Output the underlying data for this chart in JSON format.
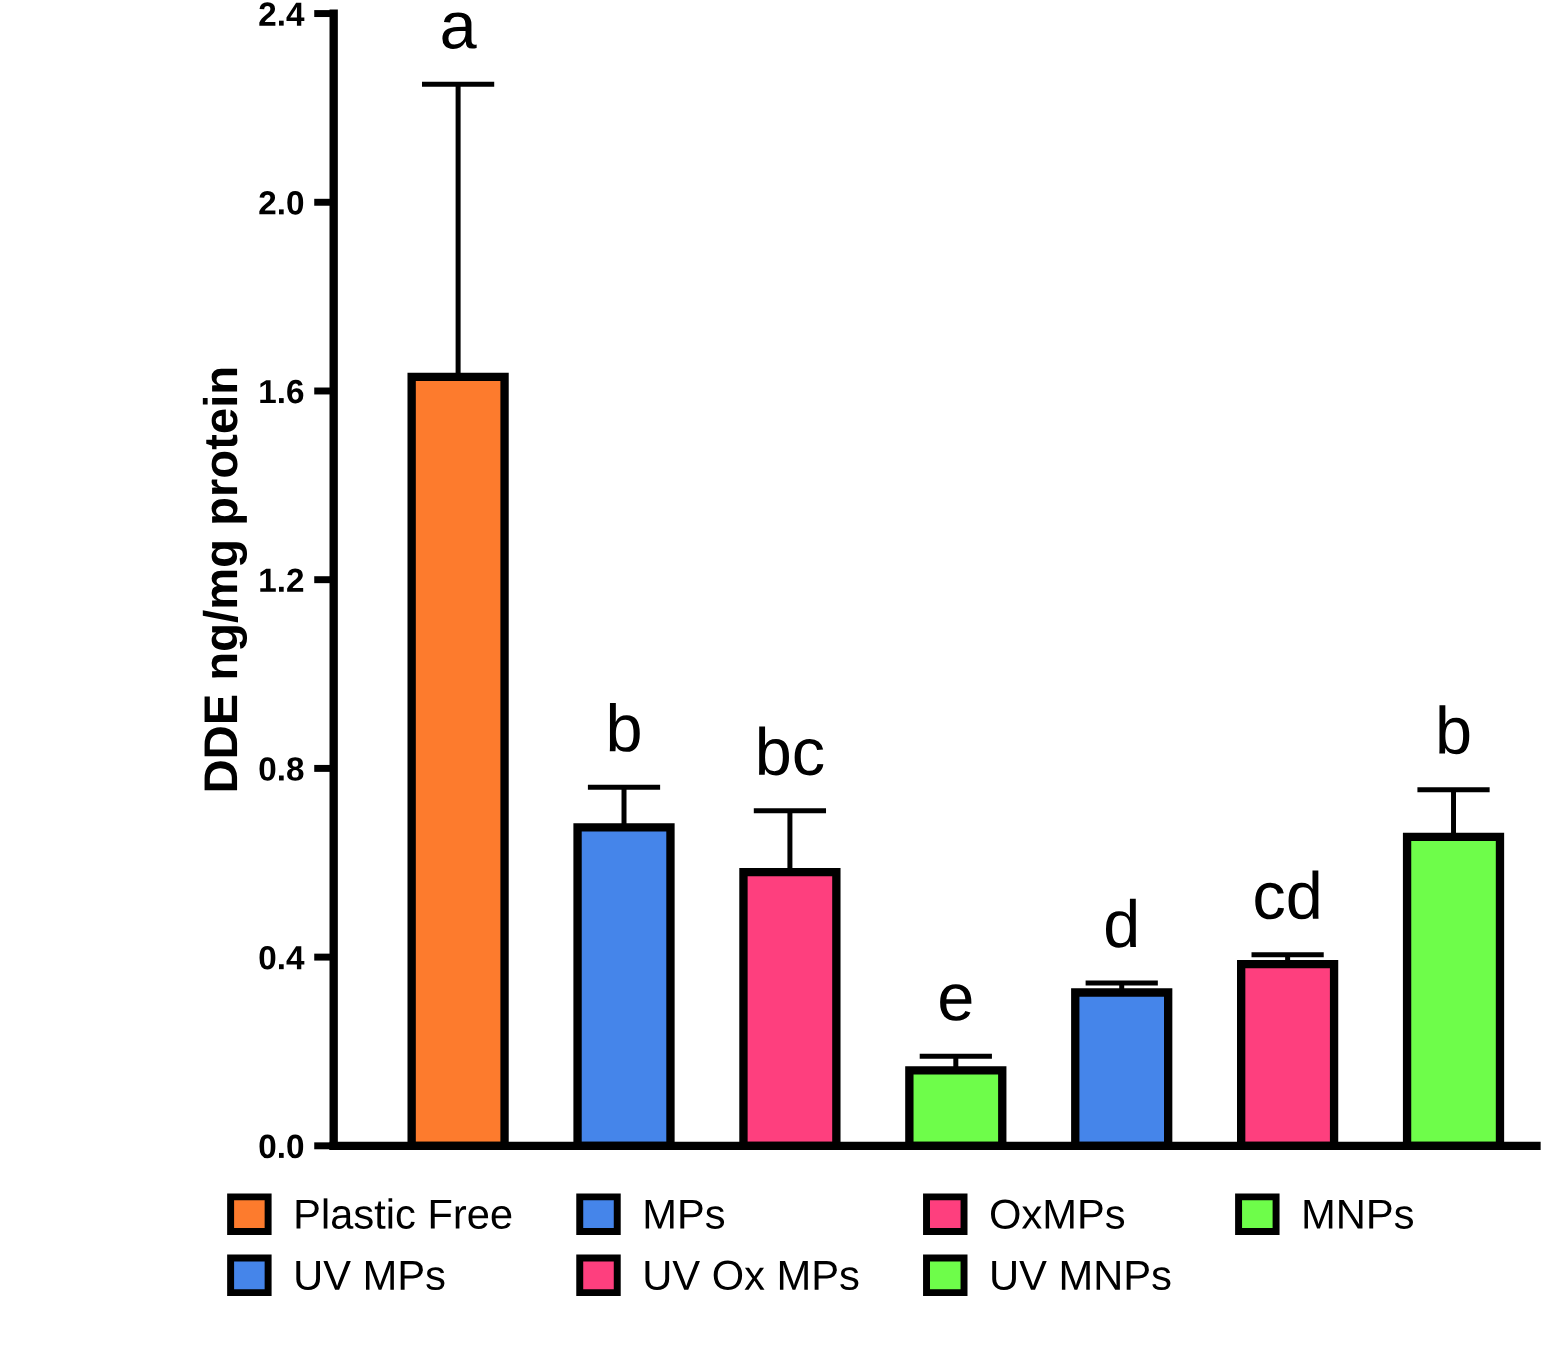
{
  "chart_data": {
    "type": "bar",
    "ylabel": "DDE ng/mg protein",
    "categories": [
      null,
      null,
      null,
      null,
      null,
      null,
      null
    ],
    "series": [
      {
        "name": "Plastic Free",
        "color": "#fd7b2d",
        "values": [
          1.63,
          null,
          null,
          null,
          null,
          null,
          null
        ],
        "errors": [
          [
            1.63,
            2.25
          ],
          null,
          null,
          null,
          null,
          null,
          null
        ]
      },
      {
        "name": "MPs",
        "color": "#4585ea",
        "values": [
          null,
          0.675,
          null,
          null,
          null,
          null,
          null
        ],
        "errors": [
          null,
          [
            0.675,
            0.76
          ],
          null,
          null,
          null,
          null,
          null
        ]
      },
      {
        "name": "OxMPs",
        "color": "#fe3f7e",
        "values": [
          null,
          null,
          0.58,
          null,
          null,
          null,
          null
        ],
        "errors": [
          null,
          null,
          [
            0.58,
            0.71
          ],
          null,
          null,
          null,
          null
        ]
      },
      {
        "name": "MNPs",
        "color": "#6efd4a",
        "values": [
          null,
          null,
          null,
          0.16,
          null,
          null,
          null
        ],
        "errors": [
          null,
          null,
          null,
          [
            0.16,
            0.19
          ],
          null,
          null,
          null
        ]
      },
      {
        "name": "UV MPs",
        "color": "#4585ea",
        "values": [
          null,
          null,
          null,
          null,
          0.325,
          null,
          null
        ],
        "errors": [
          null,
          null,
          null,
          null,
          [
            0.325,
            0.345
          ],
          null,
          null
        ]
      },
      {
        "name": "UV Ox MPs",
        "color": "#fe3f7e",
        "values": [
          null,
          null,
          null,
          null,
          null,
          0.385,
          null
        ],
        "errors": [
          null,
          null,
          null,
          null,
          null,
          [
            0.385,
            0.405
          ],
          null
        ]
      },
      {
        "name": "UV MNPs",
        "color": "#6efd4a",
        "values": [
          null,
          null,
          null,
          null,
          null,
          null,
          0.655
        ],
        "errors": [
          null,
          null,
          null,
          null,
          null,
          null,
          [
            0.655,
            0.755
          ]
        ]
      }
    ],
    "annotations": [
      "a",
      "b",
      "bc",
      "e",
      "d",
      "cd",
      "b"
    ],
    "ylim": [
      0,
      2.4
    ],
    "yticks": [
      {
        "value": 0,
        "label": "0.0"
      },
      {
        "value": 0.4,
        "label": "0.4"
      },
      {
        "value": 0.8,
        "label": "0.8"
      },
      {
        "value": 1.2,
        "label": "1.2"
      },
      {
        "value": 1.6,
        "label": "1.6"
      },
      {
        "value": 2.0,
        "label": "2.0"
      },
      {
        "value": 2.4,
        "label": "2.4"
      }
    ],
    "grid": false,
    "legend": "bottom"
  }
}
